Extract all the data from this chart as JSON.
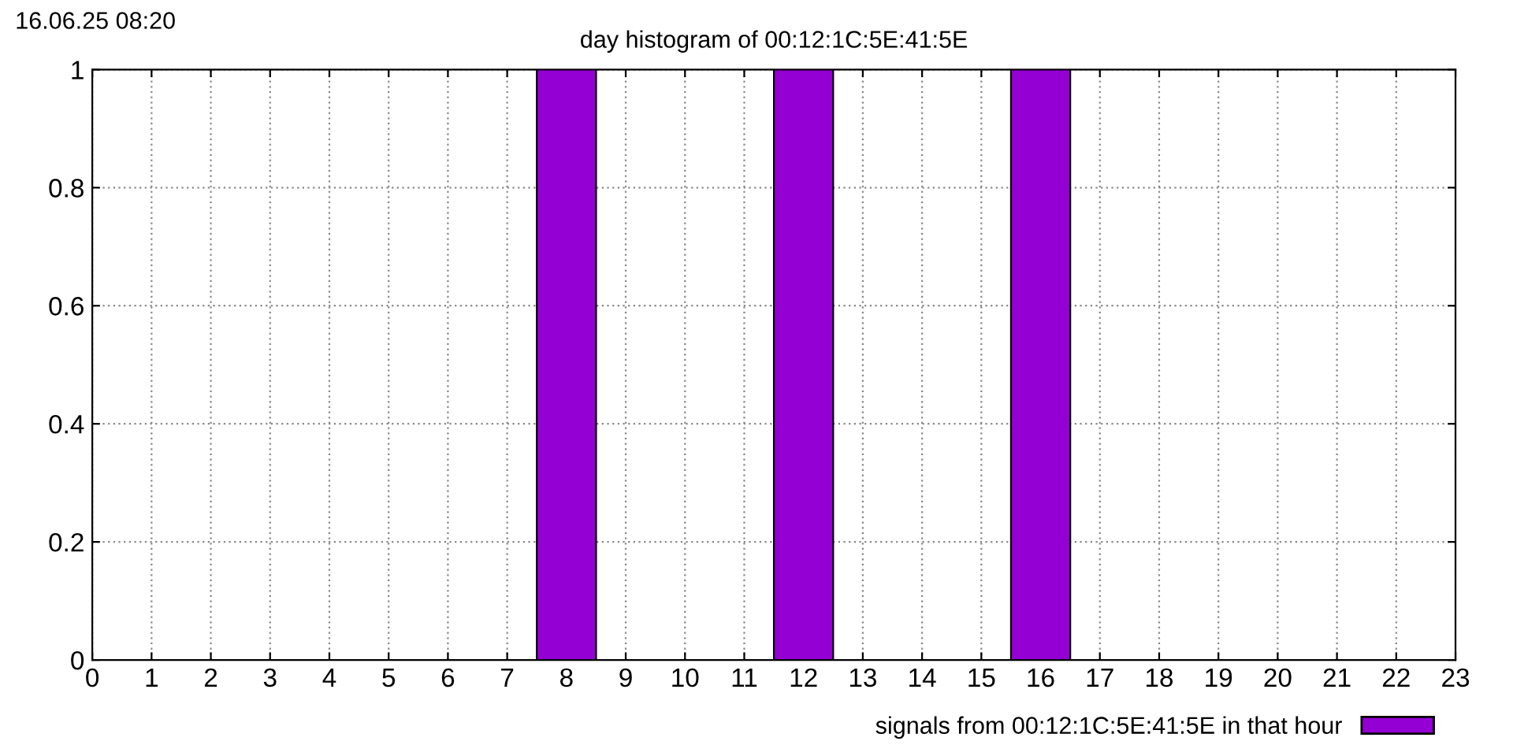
{
  "chart_data": {
    "type": "bar",
    "title": "day histogram of 00:12:1C:5E:41:5E",
    "annotations": [
      "16.06.25 08:20"
    ],
    "x": [
      0,
      1,
      2,
      3,
      4,
      5,
      6,
      7,
      8,
      9,
      10,
      11,
      12,
      13,
      14,
      15,
      16,
      17,
      18,
      19,
      20,
      21,
      22
    ],
    "series": [
      {
        "name": "signals from 00:12:1C:5E:41:5E in that hour",
        "color": "#9400d3",
        "values": [
          0,
          0,
          0,
          0,
          0,
          0,
          0,
          0,
          1,
          0,
          0,
          0,
          1,
          0,
          0,
          0,
          1,
          0,
          0,
          0,
          0,
          0,
          0
        ]
      }
    ],
    "xlim": [
      0,
      23
    ],
    "xticks": [
      0,
      1,
      2,
      3,
      4,
      5,
      6,
      7,
      8,
      9,
      10,
      11,
      12,
      13,
      14,
      15,
      16,
      17,
      18,
      19,
      20,
      21,
      22,
      23
    ],
    "ylim": [
      0,
      1
    ],
    "yticks": [
      0,
      {
        "value": 0.2,
        "label": "0.2"
      },
      {
        "value": 0.4,
        "label": "0.4"
      },
      {
        "value": 0.6,
        "label": "0.6"
      },
      {
        "value": 0.8,
        "label": "0.8"
      },
      1
    ],
    "grid": true,
    "legend": "bottom right"
  }
}
